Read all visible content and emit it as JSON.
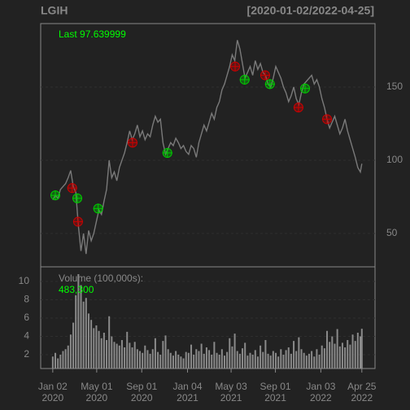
{
  "chart_data": {
    "type": "line",
    "title": "LGIH",
    "subtitle": "[2020-01-02/2022-04-25]",
    "x": [
      "2020-01-02",
      "2020-01-09",
      "2020-01-16",
      "2020-01-23",
      "2020-01-30",
      "2020-02-06",
      "2020-02-13",
      "2020-02-20",
      "2020-02-27",
      "2020-03-05",
      "2020-03-12",
      "2020-03-19",
      "2020-03-26",
      "2020-04-02",
      "2020-04-09",
      "2020-04-16",
      "2020-04-23",
      "2020-04-30",
      "2020-05-07",
      "2020-05-14",
      "2020-05-21",
      "2020-05-28",
      "2020-06-04",
      "2020-06-11",
      "2020-06-18",
      "2020-06-25",
      "2020-07-02",
      "2020-07-09",
      "2020-07-16",
      "2020-07-23",
      "2020-07-30",
      "2020-08-06",
      "2020-08-13",
      "2020-08-20",
      "2020-08-27",
      "2020-09-03",
      "2020-09-10",
      "2020-09-17",
      "2020-09-24",
      "2020-10-01",
      "2020-10-08",
      "2020-10-15",
      "2020-10-22",
      "2020-10-29",
      "2020-11-05",
      "2020-11-12",
      "2020-11-19",
      "2020-11-26",
      "2020-12-03",
      "2020-12-10",
      "2020-12-17",
      "2020-12-24",
      "2020-12-31",
      "2021-01-07",
      "2021-01-14",
      "2021-01-21",
      "2021-01-28",
      "2021-02-04",
      "2021-02-11",
      "2021-02-18",
      "2021-02-25",
      "2021-03-04",
      "2021-03-11",
      "2021-03-18",
      "2021-03-25",
      "2021-04-01",
      "2021-04-08",
      "2021-04-15",
      "2021-04-22",
      "2021-04-29",
      "2021-05-06",
      "2021-05-13",
      "2021-05-20",
      "2021-05-27",
      "2021-06-03",
      "2021-06-10",
      "2021-06-17",
      "2021-06-24",
      "2021-07-01",
      "2021-07-08",
      "2021-07-15",
      "2021-07-22",
      "2021-07-29",
      "2021-08-05",
      "2021-08-12",
      "2021-08-19",
      "2021-08-26",
      "2021-09-02",
      "2021-09-09",
      "2021-09-16",
      "2021-09-23",
      "2021-09-30",
      "2021-10-07",
      "2021-10-14",
      "2021-10-21",
      "2021-10-28",
      "2021-11-04",
      "2021-11-11",
      "2021-11-18",
      "2021-11-25",
      "2021-12-02",
      "2021-12-09",
      "2021-12-16",
      "2021-12-23",
      "2021-12-30",
      "2022-01-06",
      "2022-01-13",
      "2022-01-20",
      "2022-01-27",
      "2022-02-03",
      "2022-02-10",
      "2022-02-17",
      "2022-02-24",
      "2022-03-03",
      "2022-03-10",
      "2022-03-17",
      "2022-03-24",
      "2022-03-31",
      "2022-04-07",
      "2022-04-14",
      "2022-04-21",
      "2022-04-25"
    ],
    "series": [
      {
        "color": "#7a7a7a",
        "values": [
          73,
          76,
          74,
          80,
          82,
          84,
          88,
          93,
          82,
          78,
          55,
          38,
          50,
          36,
          52,
          45,
          50,
          58,
          66,
          63,
          72,
          80,
          100,
          88,
          92,
          86,
          95,
          100,
          105,
          112,
          120,
          114,
          118,
          124,
          116,
          120,
          114,
          118,
          116,
          124,
          130,
          126,
          128,
          112,
          104,
          108,
          112,
          110,
          115,
          112,
          108,
          110,
          106,
          104,
          110,
          108,
          102,
          112,
          118,
          124,
          120,
          126,
          132,
          128,
          136,
          140,
          148,
          152,
          158,
          164,
          172,
          168,
          182,
          176,
          166,
          156,
          160,
          164,
          158,
          168,
          162,
          166,
          160,
          158,
          152,
          150,
          156,
          164,
          160,
          156,
          150,
          146,
          140,
          144,
          150,
          142,
          138,
          146,
          152,
          154,
          156,
          158,
          152,
          155,
          150,
          142,
          136,
          128,
          122,
          126,
          130,
          124,
          118,
          122,
          128,
          120,
          114,
          108,
          102,
          95,
          92,
          97.639999
        ]
      }
    ],
    "xlim": [
      "2019-11-30",
      "2022-05-31"
    ],
    "xticks": [
      {
        "value": "2020-01-02",
        "label": [
          "Jan 02",
          "2020"
        ]
      },
      {
        "value": "2020-05-01",
        "label": [
          "May 01",
          "2020"
        ]
      },
      {
        "value": "2020-09-01",
        "label": [
          "Sep 01",
          "2020"
        ]
      },
      {
        "value": "2021-01-04",
        "label": [
          "Jan 04",
          "2021"
        ]
      },
      {
        "value": "2021-05-03",
        "label": [
          "May 03",
          "2021"
        ]
      },
      {
        "value": "2021-09-01",
        "label": [
          "Sep 01",
          "2021"
        ]
      },
      {
        "value": "2022-01-03",
        "label": [
          "Jan 03",
          "2022"
        ]
      },
      {
        "value": "2022-04-25",
        "label": [
          "Apr 25",
          "2022"
        ]
      }
    ],
    "ylim": [
      27.2,
      193.3
    ],
    "yticks": [
      50,
      100,
      150
    ],
    "grid": true,
    "last": {
      "label": "Last",
      "value": 97.639999,
      "color": "#00ff00"
    },
    "signals": [
      {
        "color": "#00cc00",
        "x": [
          "2020-01-09",
          "2020-03-09",
          "2020-05-05",
          "2020-11-10",
          "2021-06-09",
          "2021-08-17",
          "2021-11-21"
        ],
        "values": [
          76,
          74,
          67,
          105,
          155,
          152,
          149
        ]
      },
      {
        "color": "#cc0000",
        "x": [
          "2020-02-24",
          "2020-03-11",
          "2020-08-07",
          "2021-05-14",
          "2021-08-04",
          "2021-11-03",
          "2022-01-20"
        ],
        "values": [
          81,
          58,
          112,
          164,
          158,
          136,
          128
        ]
      }
    ],
    "volume": {
      "label": "Volume (100,000s):",
      "last": {
        "value": 4.833,
        "label": "483,300"
      },
      "color": "#8a8a8a",
      "values": [
        1.8,
        2.2,
        1.6,
        2.0,
        2.4,
        2.6,
        3.0,
        4.2,
        5.5,
        8.5,
        10.8,
        9.6,
        7.8,
        8.2,
        6.5,
        5.8,
        4.9,
        5.2,
        4.6,
        3.8,
        4.4,
        3.6,
        6.2,
        4.0,
        3.4,
        3.2,
        3.0,
        3.6,
        2.8,
        4.5,
        3.3,
        2.8,
        3.4,
        2.6,
        2.4,
        2.2,
        3.0,
        2.5,
        2.1,
        2.6,
        3.8,
        2.3,
        2.0,
        3.5,
        4.1,
        2.6,
        2.2,
        1.9,
        2.4,
        2.0,
        1.8,
        1.6,
        2.3,
        2.2,
        3.1,
        2.0,
        2.6,
        2.4,
        3.2,
        2.1,
        2.8,
        2.5,
        2.0,
        3.4,
        2.2,
        2.0,
        2.6,
        1.9,
        2.3,
        3.8,
        2.9,
        4.3,
        2.4,
        2.1,
        2.7,
        3.3,
        1.9,
        2.2,
        2.0,
        2.5,
        1.8,
        3.0,
        2.3,
        3.6,
        2.1,
        1.9,
        2.4,
        2.2,
        1.8,
        2.6,
        2.0,
        2.5,
        2.8,
        2.1,
        3.5,
        2.4,
        3.9,
        2.6,
        2.2,
        1.9,
        2.1,
        2.4,
        1.8,
        2.6,
        2.0,
        3.0,
        2.7,
        4.6,
        3.4,
        4.0,
        3.2,
        4.8,
        2.9,
        3.3,
        2.8,
        3.6,
        3.1,
        4.2,
        3.5,
        4.4,
        4.0,
        4.833
      ],
      "ylim": [
        0.49,
        11.6
      ],
      "yticks": [
        2,
        4,
        6,
        8,
        10
      ]
    }
  }
}
